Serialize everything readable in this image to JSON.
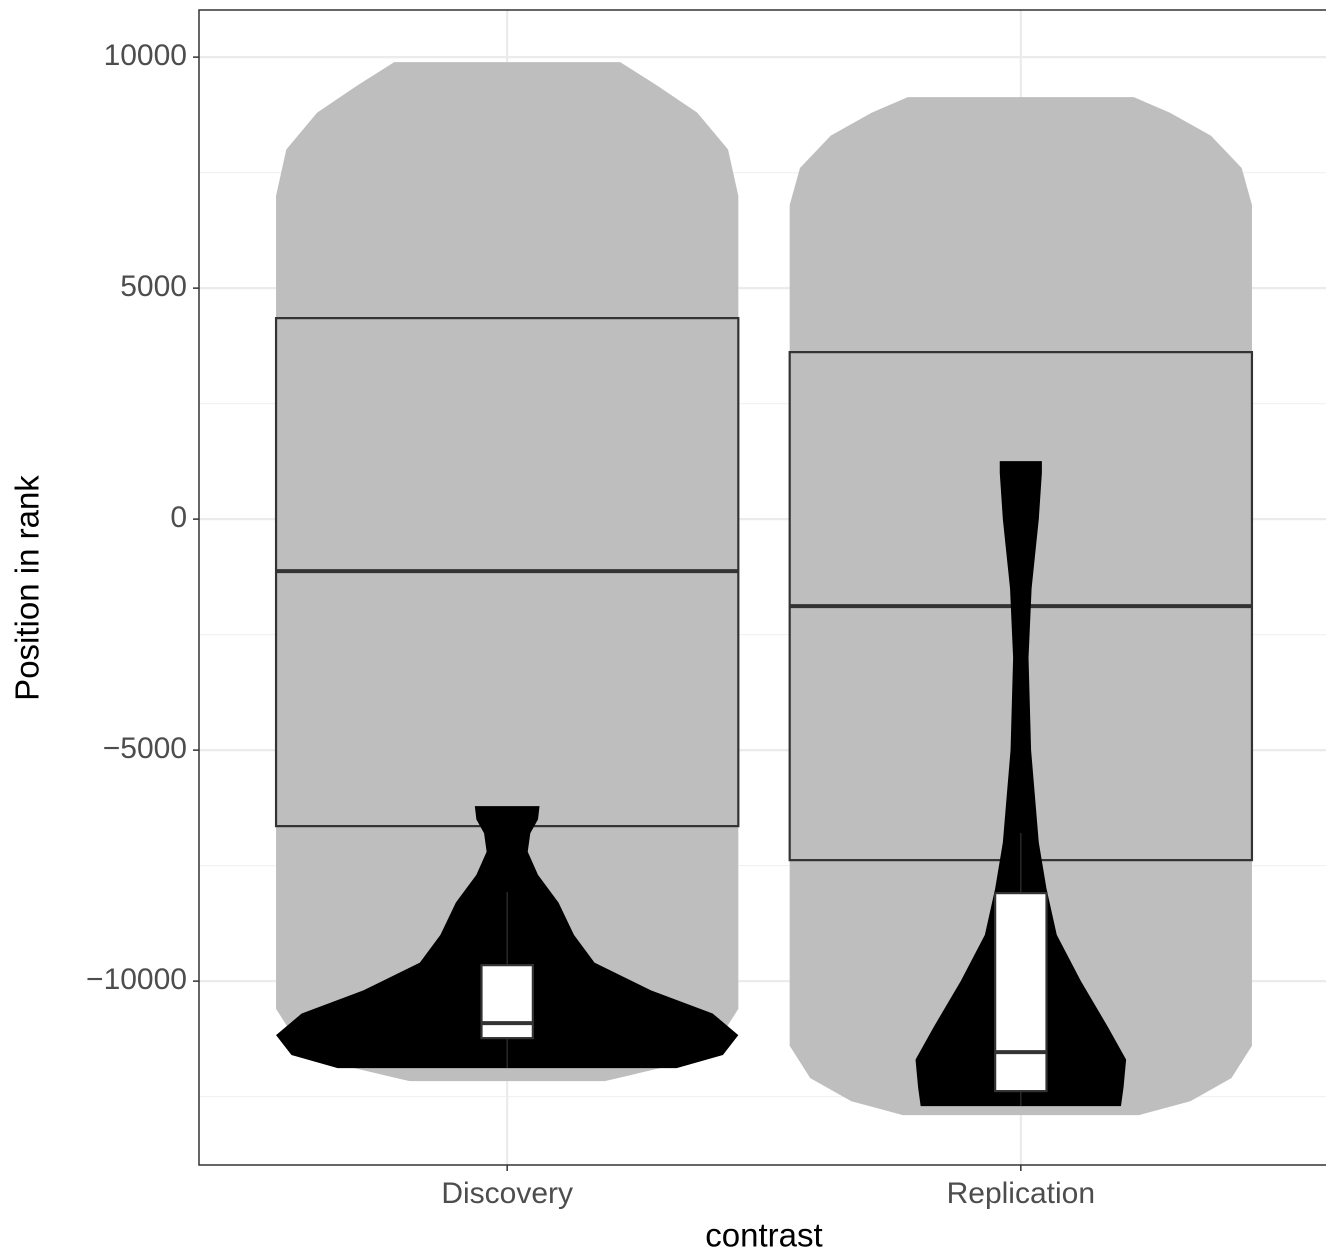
{
  "chart_data": {
    "type": "violin",
    "categories": [
      "Discovery",
      "Replication"
    ],
    "xlabel": "contrast",
    "ylabel": "Position in rank",
    "xlim": [
      0.4,
      2.6
    ],
    "ylim": [
      -13980,
      11020
    ],
    "yticks": [
      {
        "value": -10000,
        "label": "−10000"
      },
      {
        "value": -5000,
        "label": "−5000"
      },
      0,
      5000,
      10000
    ],
    "yminor": [
      -12500,
      -7500,
      -2500,
      2500,
      7500
    ],
    "grid": true,
    "layers": [
      {
        "type": "violin",
        "fill": "#bebebe",
        "groups": [
          {
            "y": [
              -12165,
              -11800,
              -11300,
              -10600,
              7000,
              8000,
              8800,
              9400,
              9892
            ],
            "half_width": [
              0.19,
              0.33,
              0.41,
              0.45,
              0.45,
              0.43,
              0.37,
              0.29,
              0.22
            ]
          },
          {
            "y": [
              -12900,
              -12600,
              -12100,
              -11400,
              6800,
              7600,
              8300,
              8800,
              9134
            ],
            "half_width": [
              0.23,
              0.33,
              0.41,
              0.45,
              0.45,
              0.43,
              0.37,
              0.29,
              0.22
            ]
          }
        ]
      },
      {
        "type": "box",
        "fill": "#bebebe",
        "stroke": "#333333",
        "width": 0.9,
        "groups": [
          {
            "q1": -6645,
            "median": -1126,
            "q3": 4351
          },
          {
            "q1": -7381,
            "median": -1883,
            "q3": 3615
          }
        ]
      },
      {
        "type": "violin",
        "fill": "#000000",
        "groups": [
          {
            "y": [
              -11883,
              -11600,
              -11170,
              -10700,
              -10200,
              -9600,
              -9000,
              -8300,
              -7700,
              -7200,
              -6800,
              -6500,
              -6212
            ],
            "half_width": [
              0.33,
              0.42,
              0.45,
              0.4,
              0.28,
              0.17,
              0.13,
              0.1,
              0.06,
              0.04,
              0.045,
              0.06,
              0.063
            ]
          },
          {
            "y": [
              -12706,
              -12300,
              -11700,
              -11000,
              -10000,
              -9000,
              -8000,
              -7000,
              -5000,
              -3000,
              -1500,
              0,
              1000,
              1255
            ],
            "half_width": [
              0.195,
              0.2,
              0.205,
              0.17,
              0.117,
              0.07,
              0.05,
              0.035,
              0.02,
              0.015,
              0.021,
              0.035,
              0.041,
              0.041
            ]
          }
        ]
      },
      {
        "type": "box",
        "fill": "#ffffff",
        "stroke": "#333333",
        "width": 0.1,
        "groups": [
          {
            "lower": -11883,
            "q1": -11234,
            "median": -10909,
            "q3": -9654,
            "upper": -8074
          },
          {
            "lower": -12706,
            "q1": -12381,
            "median": -11537,
            "q3": -8095,
            "upper": -6797
          }
        ]
      }
    ]
  }
}
